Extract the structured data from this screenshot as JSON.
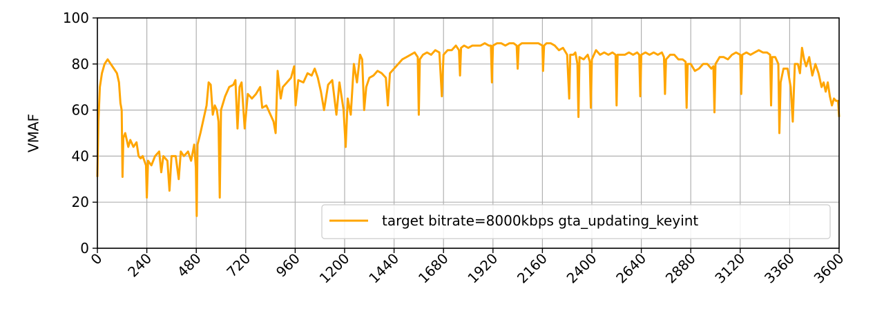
{
  "chart_data": {
    "type": "line",
    "title": "",
    "xlabel": "",
    "ylabel": "VMAF",
    "xlim": [
      0,
      3600
    ],
    "ylim": [
      0,
      100
    ],
    "xticks": [
      0,
      240,
      480,
      720,
      960,
      1200,
      1440,
      1680,
      1920,
      2160,
      2400,
      2640,
      2880,
      3120,
      3360,
      3600
    ],
    "yticks": [
      0,
      20,
      40,
      60,
      80,
      100
    ],
    "grid": true,
    "legend_position": "lower-right",
    "series": [
      {
        "name": "target bitrate=8000kbps gta_updating_keyint",
        "color": "#ffa500",
        "points": [
          [
            0,
            31
          ],
          [
            5,
            55
          ],
          [
            12,
            70
          ],
          [
            22,
            76
          ],
          [
            35,
            80
          ],
          [
            50,
            82
          ],
          [
            65,
            80
          ],
          [
            80,
            78
          ],
          [
            95,
            76
          ],
          [
            105,
            72
          ],
          [
            112,
            63
          ],
          [
            118,
            60
          ],
          [
            122,
            31
          ],
          [
            126,
            48
          ],
          [
            135,
            50
          ],
          [
            150,
            44
          ],
          [
            160,
            47
          ],
          [
            175,
            44
          ],
          [
            190,
            46
          ],
          [
            200,
            40
          ],
          [
            210,
            39
          ],
          [
            220,
            40
          ],
          [
            236,
            36
          ],
          [
            240,
            22
          ],
          [
            246,
            38
          ],
          [
            262,
            36
          ],
          [
            280,
            40
          ],
          [
            300,
            42
          ],
          [
            310,
            33
          ],
          [
            320,
            40
          ],
          [
            340,
            38
          ],
          [
            350,
            25
          ],
          [
            360,
            40
          ],
          [
            380,
            40
          ],
          [
            395,
            30
          ],
          [
            405,
            42
          ],
          [
            420,
            40
          ],
          [
            440,
            42
          ],
          [
            455,
            38
          ],
          [
            470,
            45
          ],
          [
            478,
            35
          ],
          [
            482,
            14
          ],
          [
            486,
            45
          ],
          [
            500,
            50
          ],
          [
            520,
            58
          ],
          [
            530,
            62
          ],
          [
            540,
            72
          ],
          [
            550,
            71
          ],
          [
            560,
            58
          ],
          [
            570,
            62
          ],
          [
            580,
            60
          ],
          [
            588,
            55
          ],
          [
            594,
            22
          ],
          [
            600,
            60
          ],
          [
            620,
            66
          ],
          [
            640,
            70
          ],
          [
            660,
            71
          ],
          [
            670,
            73
          ],
          [
            680,
            52
          ],
          [
            690,
            70
          ],
          [
            700,
            72
          ],
          [
            715,
            52
          ],
          [
            730,
            67
          ],
          [
            750,
            65
          ],
          [
            770,
            67
          ],
          [
            790,
            70
          ],
          [
            800,
            61
          ],
          [
            820,
            62
          ],
          [
            840,
            58
          ],
          [
            855,
            55
          ],
          [
            865,
            50
          ],
          [
            875,
            77
          ],
          [
            890,
            65
          ],
          [
            900,
            70
          ],
          [
            920,
            72
          ],
          [
            940,
            74
          ],
          [
            955,
            79
          ],
          [
            962,
            62
          ],
          [
            975,
            73
          ],
          [
            1000,
            72
          ],
          [
            1020,
            76
          ],
          [
            1040,
            75
          ],
          [
            1055,
            78
          ],
          [
            1070,
            74
          ],
          [
            1085,
            68
          ],
          [
            1100,
            60
          ],
          [
            1120,
            71
          ],
          [
            1140,
            73
          ],
          [
            1160,
            58
          ],
          [
            1175,
            72
          ],
          [
            1195,
            60
          ],
          [
            1205,
            44
          ],
          [
            1215,
            65
          ],
          [
            1230,
            58
          ],
          [
            1245,
            80
          ],
          [
            1260,
            72
          ],
          [
            1275,
            84
          ],
          [
            1285,
            82
          ],
          [
            1295,
            60
          ],
          [
            1305,
            70
          ],
          [
            1320,
            74
          ],
          [
            1340,
            75
          ],
          [
            1360,
            77
          ],
          [
            1380,
            76
          ],
          [
            1400,
            74
          ],
          [
            1410,
            62
          ],
          [
            1420,
            76
          ],
          [
            1440,
            78
          ],
          [
            1460,
            80
          ],
          [
            1480,
            82
          ],
          [
            1500,
            83
          ],
          [
            1520,
            84
          ],
          [
            1540,
            85
          ],
          [
            1555,
            83
          ],
          [
            1560,
            58
          ],
          [
            1565,
            82
          ],
          [
            1580,
            84
          ],
          [
            1600,
            85
          ],
          [
            1620,
            84
          ],
          [
            1640,
            86
          ],
          [
            1660,
            85
          ],
          [
            1672,
            66
          ],
          [
            1680,
            84
          ],
          [
            1700,
            86
          ],
          [
            1720,
            86
          ],
          [
            1740,
            88
          ],
          [
            1755,
            86
          ],
          [
            1760,
            75
          ],
          [
            1765,
            87
          ],
          [
            1780,
            88
          ],
          [
            1800,
            87
          ],
          [
            1820,
            88
          ],
          [
            1840,
            88
          ],
          [
            1860,
            88
          ],
          [
            1880,
            89
          ],
          [
            1900,
            88
          ],
          [
            1910,
            88
          ],
          [
            1915,
            72
          ],
          [
            1920,
            88
          ],
          [
            1940,
            89
          ],
          [
            1960,
            89
          ],
          [
            1980,
            88
          ],
          [
            2000,
            89
          ],
          [
            2020,
            89
          ],
          [
            2035,
            88
          ],
          [
            2040,
            78
          ],
          [
            2045,
            88
          ],
          [
            2060,
            89
          ],
          [
            2080,
            89
          ],
          [
            2100,
            89
          ],
          [
            2120,
            89
          ],
          [
            2140,
            89
          ],
          [
            2160,
            88
          ],
          [
            2163,
            77
          ],
          [
            2168,
            88
          ],
          [
            2180,
            89
          ],
          [
            2200,
            89
          ],
          [
            2220,
            88
          ],
          [
            2240,
            86
          ],
          [
            2260,
            87
          ],
          [
            2280,
            84
          ],
          [
            2290,
            65
          ],
          [
            2295,
            84
          ],
          [
            2310,
            84
          ],
          [
            2320,
            85
          ],
          [
            2330,
            80
          ],
          [
            2335,
            57
          ],
          [
            2340,
            83
          ],
          [
            2360,
            82
          ],
          [
            2380,
            84
          ],
          [
            2390,
            81
          ],
          [
            2395,
            61
          ],
          [
            2400,
            82
          ],
          [
            2420,
            86
          ],
          [
            2440,
            84
          ],
          [
            2460,
            85
          ],
          [
            2480,
            84
          ],
          [
            2500,
            85
          ],
          [
            2515,
            84
          ],
          [
            2520,
            62
          ],
          [
            2525,
            84
          ],
          [
            2540,
            84
          ],
          [
            2560,
            84
          ],
          [
            2580,
            85
          ],
          [
            2600,
            84
          ],
          [
            2620,
            85
          ],
          [
            2630,
            84
          ],
          [
            2635,
            66
          ],
          [
            2640,
            84
          ],
          [
            2660,
            85
          ],
          [
            2680,
            84
          ],
          [
            2700,
            85
          ],
          [
            2720,
            84
          ],
          [
            2740,
            85
          ],
          [
            2750,
            83
          ],
          [
            2755,
            67
          ],
          [
            2760,
            82
          ],
          [
            2780,
            84
          ],
          [
            2800,
            84
          ],
          [
            2820,
            82
          ],
          [
            2840,
            82
          ],
          [
            2855,
            81
          ],
          [
            2860,
            61
          ],
          [
            2865,
            80
          ],
          [
            2880,
            80
          ],
          [
            2900,
            77
          ],
          [
            2920,
            78
          ],
          [
            2940,
            80
          ],
          [
            2960,
            80
          ],
          [
            2980,
            78
          ],
          [
            2990,
            79
          ],
          [
            2995,
            59
          ],
          [
            3000,
            80
          ],
          [
            3020,
            83
          ],
          [
            3040,
            83
          ],
          [
            3060,
            82
          ],
          [
            3080,
            84
          ],
          [
            3100,
            85
          ],
          [
            3120,
            84
          ],
          [
            3125,
            67
          ],
          [
            3130,
            84
          ],
          [
            3150,
            85
          ],
          [
            3170,
            84
          ],
          [
            3190,
            85
          ],
          [
            3210,
            86
          ],
          [
            3230,
            85
          ],
          [
            3250,
            85
          ],
          [
            3265,
            84
          ],
          [
            3270,
            62
          ],
          [
            3275,
            83
          ],
          [
            3290,
            83
          ],
          [
            3305,
            80
          ],
          [
            3310,
            50
          ],
          [
            3316,
            72
          ],
          [
            3330,
            78
          ],
          [
            3350,
            78
          ],
          [
            3365,
            70
          ],
          [
            3375,
            55
          ],
          [
            3385,
            80
          ],
          [
            3400,
            80
          ],
          [
            3410,
            76
          ],
          [
            3420,
            87
          ],
          [
            3430,
            82
          ],
          [
            3440,
            79
          ],
          [
            3455,
            83
          ],
          [
            3470,
            75
          ],
          [
            3485,
            80
          ],
          [
            3500,
            76
          ],
          [
            3515,
            70
          ],
          [
            3525,
            72
          ],
          [
            3535,
            68
          ],
          [
            3545,
            72
          ],
          [
            3555,
            66
          ],
          [
            3565,
            62
          ],
          [
            3575,
            65
          ],
          [
            3585,
            64
          ],
          [
            3595,
            64
          ],
          [
            3600,
            57
          ]
        ]
      }
    ]
  }
}
